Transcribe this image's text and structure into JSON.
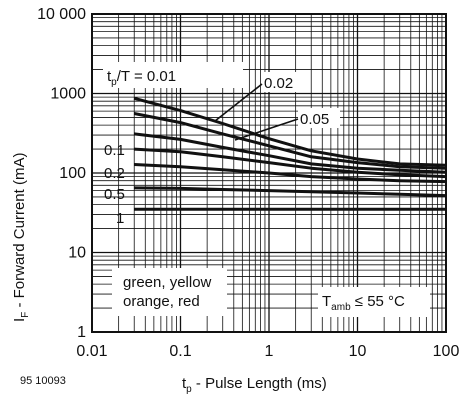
{
  "chart_data": {
    "type": "line",
    "title": "",
    "figure_id": "95 10093",
    "xlabel": {
      "main": "t",
      "sub": "p",
      "rest": " - Pulse Length (ms)"
    },
    "ylabel": {
      "main": "I",
      "sub": "F",
      "rest": " - Forward Current (mA)"
    },
    "x_scale": "log",
    "y_scale": "log",
    "xlim": [
      0.01,
      100
    ],
    "ylim": [
      1,
      10000
    ],
    "grid": true,
    "x_ticks": [
      {
        "value": 0.01,
        "label": "0.01"
      },
      {
        "value": 0.1,
        "label": "0.1"
      },
      {
        "value": 1,
        "label": "1"
      },
      {
        "value": 10,
        "label": "10"
      },
      {
        "value": 100,
        "label": "100"
      }
    ],
    "y_ticks": [
      {
        "value": 1,
        "label": "1"
      },
      {
        "value": 10,
        "label": "10"
      },
      {
        "value": 100,
        "label": "100"
      },
      {
        "value": 1000,
        "label": "1000"
      },
      {
        "value": 10000,
        "label": "10 000"
      }
    ],
    "series": [
      {
        "name": "0.01",
        "x": [
          0.03,
          0.1,
          0.3,
          1,
          3,
          10,
          30,
          100
        ],
        "y": [
          870,
          610,
          420,
          270,
          190,
          150,
          130,
          125
        ]
      },
      {
        "name": "0.02",
        "x": [
          0.03,
          0.1,
          0.3,
          1,
          3,
          10,
          30,
          100
        ],
        "y": [
          560,
          430,
          310,
          220,
          160,
          135,
          120,
          115
        ]
      },
      {
        "name": "0.05",
        "x": [
          0.03,
          0.1,
          0.3,
          1,
          3,
          10,
          30,
          100
        ],
        "y": [
          310,
          265,
          210,
          165,
          130,
          115,
          108,
          102
        ]
      },
      {
        "name": "0.1",
        "x": [
          0.03,
          0.1,
          0.3,
          1,
          3,
          10,
          30,
          100
        ],
        "y": [
          200,
          185,
          160,
          135,
          115,
          102,
          95,
          90
        ]
      },
      {
        "name": "0.2",
        "x": [
          0.03,
          0.1,
          0.3,
          1,
          3,
          10,
          30,
          100
        ],
        "y": [
          128,
          120,
          110,
          100,
          90,
          84,
          80,
          78
        ]
      },
      {
        "name": "0.5",
        "x": [
          0.03,
          0.1,
          0.3,
          1,
          3,
          10,
          30,
          100
        ],
        "y": [
          65,
          64,
          62,
          60,
          58,
          56,
          54,
          52
        ]
      },
      {
        "name": "1",
        "x": [
          0.03,
          100
        ],
        "y": [
          35,
          35
        ]
      }
    ],
    "annotations": {
      "duty_prefix": "t",
      "duty_sub": "p",
      "duty_rest": "/T = 0.01",
      "label_002": "0.02",
      "label_005": "0.05",
      "label_01": "0.1",
      "label_02": "0.2",
      "label_05": "0.5",
      "label_1": "1",
      "colors_line1": "green, yellow",
      "colors_line2": "orange, red",
      "temp_main": "T",
      "temp_sub": "amb",
      "temp_rest": " ≤ 55 °C"
    }
  }
}
